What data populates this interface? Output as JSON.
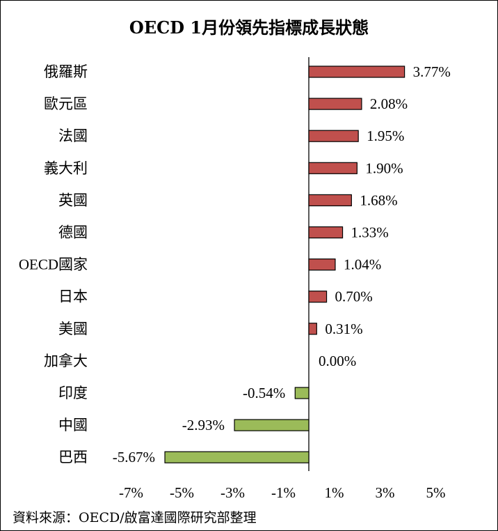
{
  "chart_data": {
    "type": "bar",
    "orientation": "horizontal",
    "title": "OECD 1月份領先指標成長狀態",
    "categories": [
      "俄羅斯",
      "歐元區",
      "法國",
      "義大利",
      "英國",
      "德國",
      "OECD國家",
      "日本",
      "美國",
      "加拿大",
      "印度",
      "中國",
      "巴西"
    ],
    "values": [
      3.77,
      2.08,
      1.95,
      1.9,
      1.68,
      1.33,
      1.04,
      0.7,
      0.31,
      0.0,
      -0.54,
      -2.93,
      -5.67
    ],
    "value_labels": [
      "3.77%",
      "2.08%",
      "1.95%",
      "1.90%",
      "1.68%",
      "1.33%",
      "1.04%",
      "0.70%",
      "0.31%",
      "0.00%",
      "-0.54%",
      "-2.93%",
      "-5.67%"
    ],
    "xlim": [
      -7,
      5
    ],
    "x_ticks": [
      -7,
      -5,
      -3,
      -1,
      1,
      3,
      5
    ],
    "x_tick_labels": [
      "-7%",
      "-5%",
      "-3%",
      "-1%",
      "1%",
      "3%",
      "5%"
    ],
    "colors": {
      "positive": "#c0504d",
      "negative": "#9bbb59"
    },
    "grid": false,
    "legend": "none"
  },
  "source_note": "資料來源：OECD/啟富達國際研究部整理"
}
